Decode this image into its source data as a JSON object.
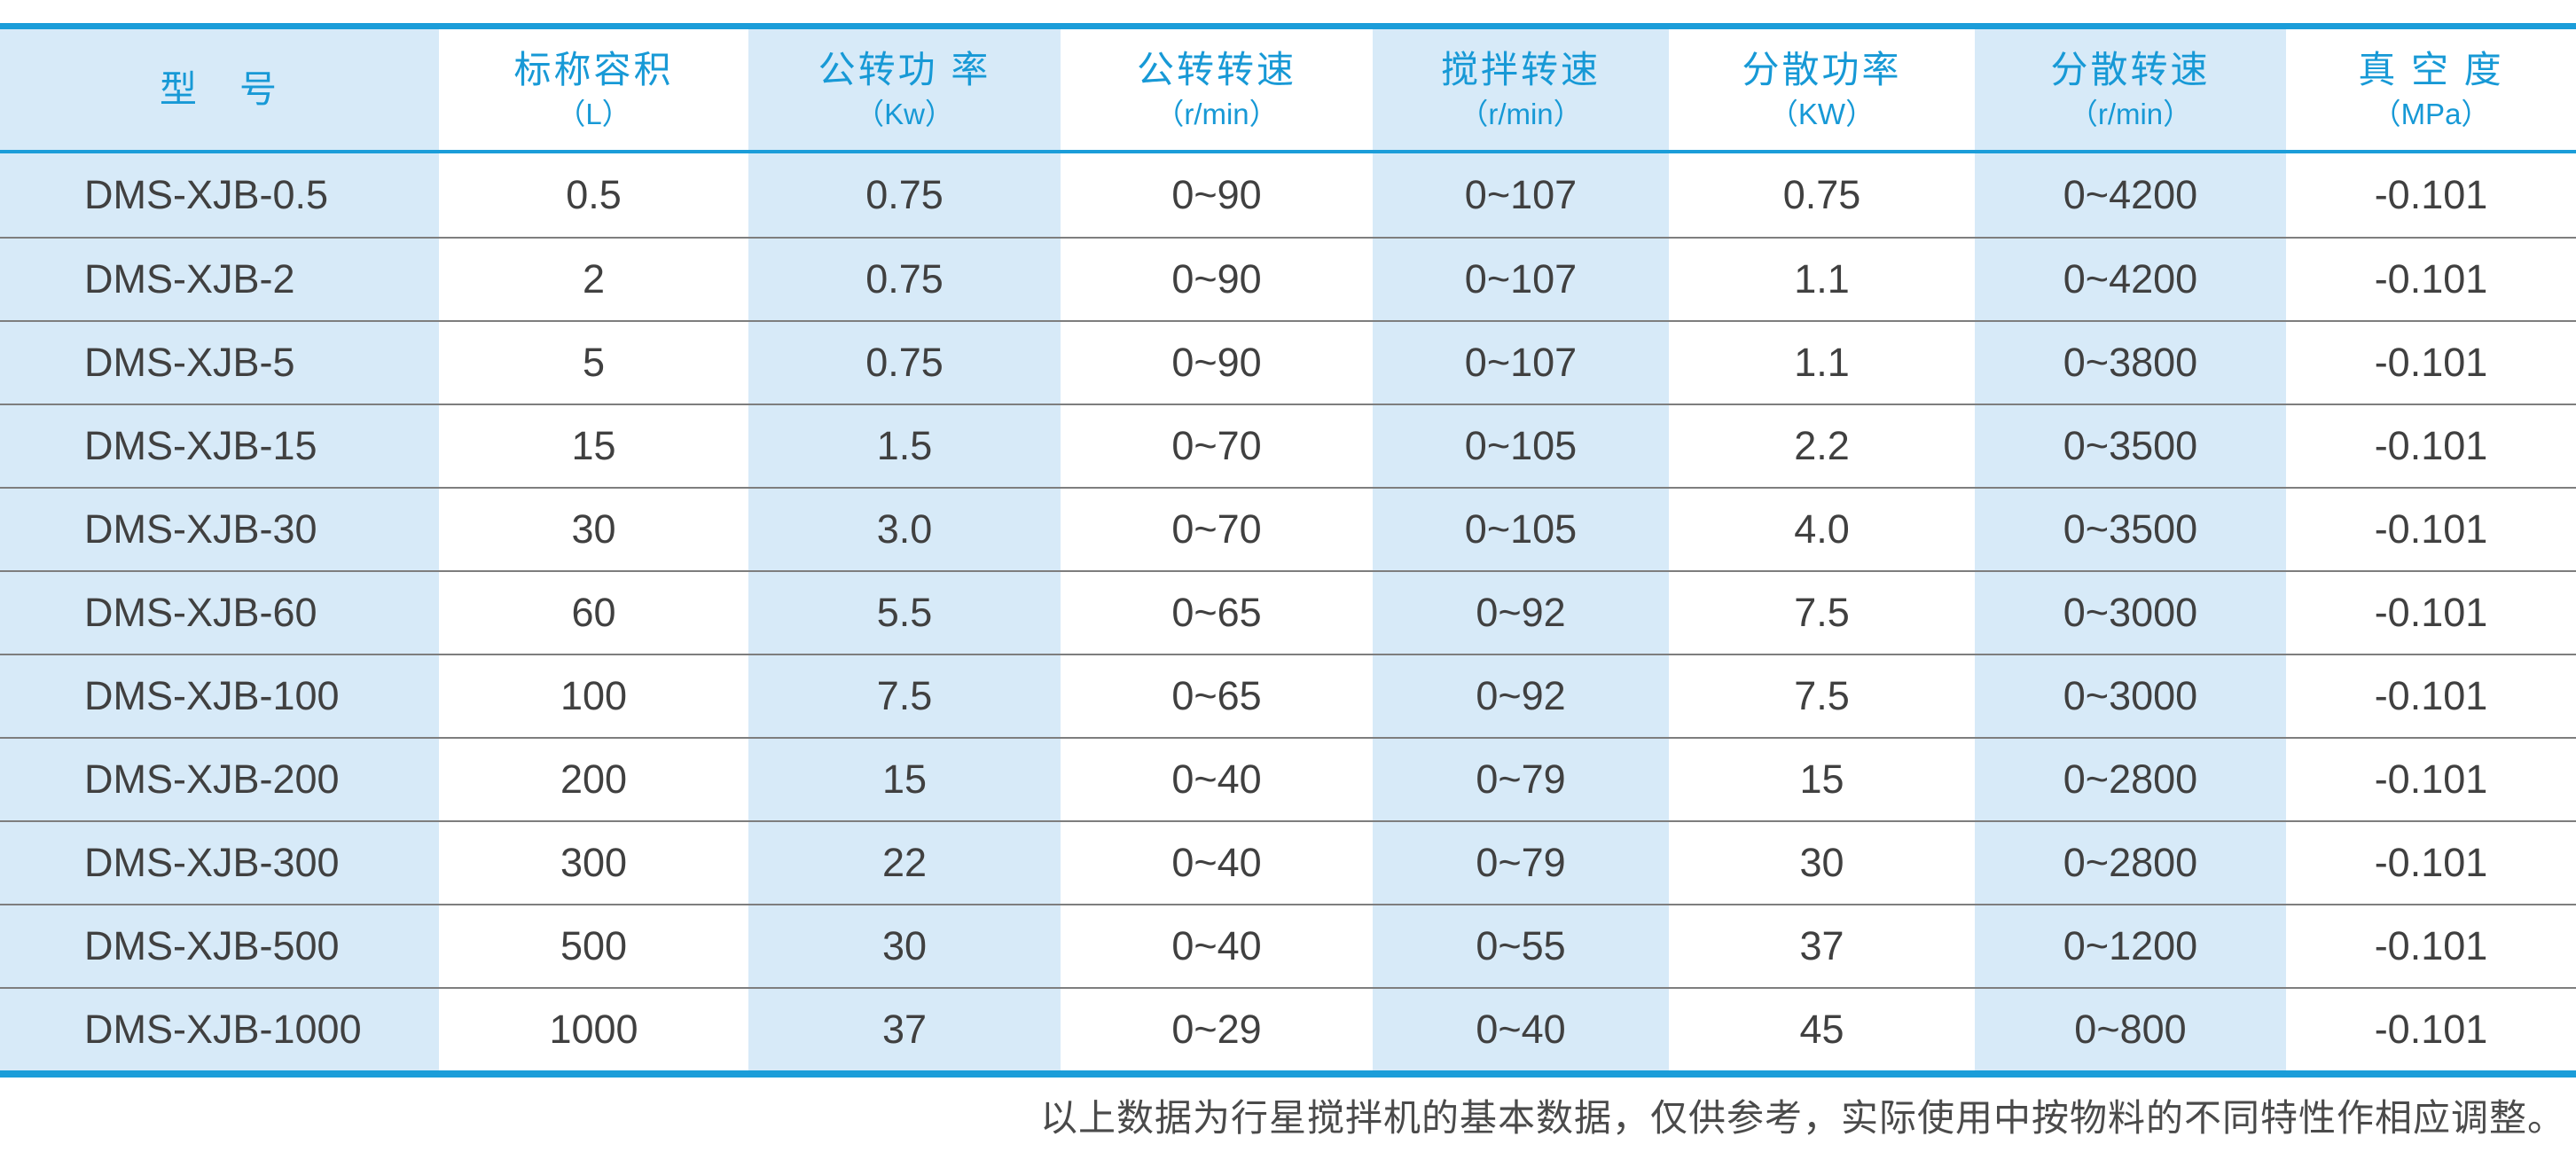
{
  "colors": {
    "accent_blue": "#1b9dd9",
    "header_text_blue": "#1799d6",
    "light_blue_column": "#d7eaf8",
    "row_separator_gray": "#7e7e7e",
    "body_text": "#404040",
    "footer_text": "#4a4a4a"
  },
  "table": {
    "columns": [
      {
        "label": "型　号",
        "unit": ""
      },
      {
        "label": "标称容积",
        "unit": "（L）"
      },
      {
        "label": "公转功 率",
        "unit": "（Kw）"
      },
      {
        "label": "公转转速",
        "unit": "（r/min）"
      },
      {
        "label": "搅拌转速",
        "unit": "（r/min）"
      },
      {
        "label": "分散功率",
        "unit": "（KW）"
      },
      {
        "label": "分散转速",
        "unit": "（r/min）"
      },
      {
        "label": "真 空 度",
        "unit": "（MPa）"
      }
    ],
    "rows": [
      {
        "model": "DMS-XJB-0.5",
        "values": [
          "0.5",
          "0.75",
          "0~90",
          "0~107",
          "0.75",
          "0~4200",
          "-0.101"
        ]
      },
      {
        "model": "DMS-XJB-2",
        "values": [
          "2",
          "0.75",
          "0~90",
          "0~107",
          "1.1",
          "0~4200",
          "-0.101"
        ]
      },
      {
        "model": "DMS-XJB-5",
        "values": [
          "5",
          "0.75",
          "0~90",
          "0~107",
          "1.1",
          "0~3800",
          "-0.101"
        ]
      },
      {
        "model": "DMS-XJB-15",
        "values": [
          "15",
          "1.5",
          "0~70",
          "0~105",
          "2.2",
          "0~3500",
          "-0.101"
        ]
      },
      {
        "model": "DMS-XJB-30",
        "values": [
          "30",
          "3.0",
          "0~70",
          "0~105",
          "4.0",
          "0~3500",
          "-0.101"
        ]
      },
      {
        "model": "DMS-XJB-60",
        "values": [
          "60",
          "5.5",
          "0~65",
          "0~92",
          "7.5",
          "0~3000",
          "-0.101"
        ]
      },
      {
        "model": "DMS-XJB-100",
        "values": [
          "100",
          "7.5",
          "0~65",
          "0~92",
          "7.5",
          "0~3000",
          "-0.101"
        ]
      },
      {
        "model": "DMS-XJB-200",
        "values": [
          "200",
          "15",
          "0~40",
          "0~79",
          "15",
          "0~2800",
          "-0.101"
        ]
      },
      {
        "model": "DMS-XJB-300",
        "values": [
          "300",
          "22",
          "0~40",
          "0~79",
          "30",
          "0~2800",
          "-0.101"
        ]
      },
      {
        "model": "DMS-XJB-500",
        "values": [
          "500",
          "30",
          "0~40",
          "0~55",
          "37",
          "0~1200",
          "-0.101"
        ]
      },
      {
        "model": "DMS-XJB-1000",
        "values": [
          "1000",
          "37",
          "0~29",
          "0~40",
          "45",
          "0~800",
          "-0.101"
        ]
      }
    ]
  },
  "footer": {
    "note": "以上数据为行星搅拌机的基本数据，仅供参考，实际使用中按物料的不同特性作相应调整。"
  }
}
